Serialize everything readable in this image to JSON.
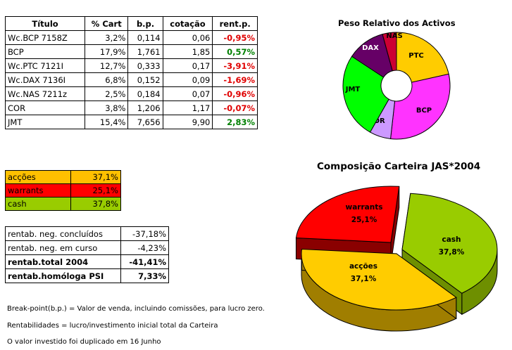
{
  "holdings": {
    "headers": [
      "Título",
      "% Cart",
      "b.p.",
      "cotação",
      "rent.p."
    ],
    "rows": [
      {
        "name": "Wc.BCP 7158Z",
        "cart": "3,2%",
        "bp": "0,114",
        "cot": "0,06",
        "rent": "-0,95%",
        "rent_color": "#e00000"
      },
      {
        "name": "BCP",
        "cart": "17,9%",
        "bp": "1,761",
        "cot": "1,85",
        "rent": "0,57%",
        "rent_color": "#008000"
      },
      {
        "name": "Wc.PTC 7121I",
        "cart": "12,7%",
        "bp": "0,333",
        "cot": "0,17",
        "rent": "-3,91%",
        "rent_color": "#e00000"
      },
      {
        "name": "Wc.DAX 7136I",
        "cart": "6,8%",
        "bp": "0,152",
        "cot": "0,09",
        "rent": "-1,69%",
        "rent_color": "#e00000"
      },
      {
        "name": "Wc.NAS 7211z",
        "cart": "2,5%",
        "bp": "0,184",
        "cot": "0,07",
        "rent": "-0,96%",
        "rent_color": "#e00000"
      },
      {
        "name": "COR",
        "cart": "3,8%",
        "bp": "1,206",
        "cot": "1,17",
        "rent": "-0,07%",
        "rent_color": "#e00000"
      },
      {
        "name": "JMT",
        "cart": "15,4%",
        "bp": "7,656",
        "cot": "9,90",
        "rent": "2,83%",
        "rent_color": "#008000"
      }
    ]
  },
  "allocation": [
    {
      "label": "acções",
      "value": "37,1%",
      "bg": "#ffc000"
    },
    {
      "label": "warrants",
      "value": "25,1%",
      "bg": "#ff0000"
    },
    {
      "label": "cash",
      "value": "37,8%",
      "bg": "#99cc00"
    }
  ],
  "rentab": [
    {
      "label": "rentab. neg. concluídos",
      "value": "-37,18%",
      "bold": false
    },
    {
      "label": "rentab. neg. em curso",
      "value": "-4,23%",
      "bold": false
    },
    {
      "label": "rentab.total 2004",
      "value": "-41,41%",
      "bold": true
    },
    {
      "label": "rentab.homóloga PSI",
      "value": "7,33%",
      "bold": true
    }
  ],
  "notes": [
    "Break-point(b.p.) = Valor de venda, incluindo comissões, para lucro zero.",
    "Rentabilidades = lucro/investimento inicial total da Carteira",
    "O valor investido foi duplicado em 16 Junho"
  ],
  "chart_data": [
    {
      "type": "pie",
      "title": "Peso Relativo dos Activos",
      "labels": [
        "PTC",
        "BCP",
        "COR",
        "JMT",
        "DAX",
        "NAS"
      ],
      "values": [
        12.7,
        17.9,
        3.8,
        15.4,
        6.8,
        2.5
      ],
      "colors": [
        "#ffcc00",
        "#ff33ff",
        "#cc99ff",
        "#00ff00",
        "#660066",
        "#cc0033"
      ]
    },
    {
      "type": "pie",
      "title": "Composição Carteira JAS*2004",
      "labels": [
        "cash",
        "acções",
        "warrants"
      ],
      "values": [
        37.8,
        37.1,
        25.1
      ],
      "value_labels": [
        "37,8%",
        "37,1%",
        "25,1%"
      ],
      "colors": [
        "#99cc00",
        "#ffcc00",
        "#ff0000"
      ]
    }
  ]
}
